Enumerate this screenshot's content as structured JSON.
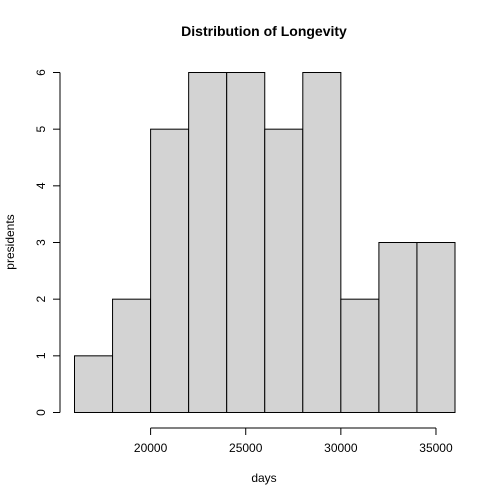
{
  "chart_data": {
    "type": "bar",
    "subtype": "histogram",
    "title": "Distribution of Longevity",
    "xlabel": "days",
    "ylabel": "presidents",
    "bins": [
      {
        "start": 16000,
        "end": 18000,
        "count": 1
      },
      {
        "start": 18000,
        "end": 20000,
        "count": 2
      },
      {
        "start": 20000,
        "end": 22000,
        "count": 5
      },
      {
        "start": 22000,
        "end": 24000,
        "count": 6
      },
      {
        "start": 24000,
        "end": 26000,
        "count": 6
      },
      {
        "start": 26000,
        "end": 28000,
        "count": 5
      },
      {
        "start": 28000,
        "end": 30000,
        "count": 6
      },
      {
        "start": 30000,
        "end": 32000,
        "count": 2
      },
      {
        "start": 32000,
        "end": 34000,
        "count": 3
      },
      {
        "start": 34000,
        "end": 36000,
        "count": 3
      }
    ],
    "xlim": [
      16000,
      36000
    ],
    "ylim": [
      0,
      6
    ],
    "x_ticks": [
      20000,
      25000,
      30000,
      35000
    ],
    "y_ticks": [
      0,
      1,
      2,
      3,
      4,
      5,
      6
    ],
    "bar_fill": "#d3d3d3",
    "bar_stroke": "#000000",
    "grid": false,
    "legend": "none"
  }
}
